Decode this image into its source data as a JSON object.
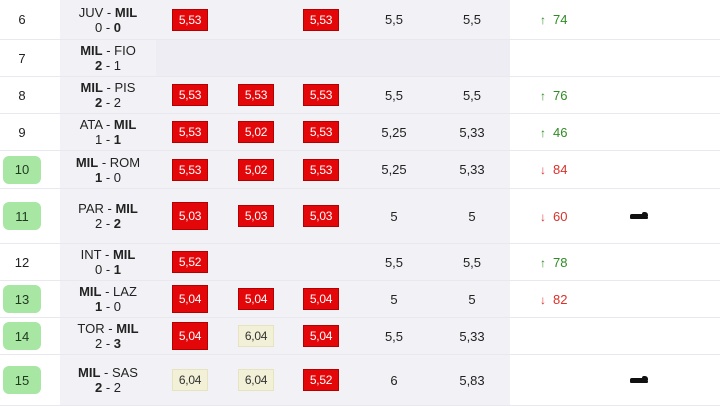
{
  "rows": [
    {
      "round": "6",
      "highlight": false,
      "home": "JUV",
      "away": "MIL",
      "home_bold": false,
      "away_bold": true,
      "sh": "0",
      "sa": "0",
      "sh_bold": false,
      "sa_bold": true,
      "b1": {
        "v": "5,53",
        "s": "red"
      },
      "b2": null,
      "b3": {
        "v": "5,53",
        "s": "red"
      },
      "a1": "5,5",
      "a2": "5,5",
      "trend": {
        "dir": "up",
        "value": "74"
      },
      "icon": false
    },
    {
      "round": "7",
      "highlight": false,
      "home": "MIL",
      "away": "FIO",
      "home_bold": true,
      "away_bold": false,
      "sh": "2",
      "sa": "1",
      "sh_bold": true,
      "sa_bold": false,
      "b1": null,
      "b2": null,
      "b3": null,
      "a1": "",
      "a2": "",
      "trend": null,
      "icon": false,
      "empty": true
    },
    {
      "round": "8",
      "highlight": false,
      "home": "MIL",
      "away": "PIS",
      "home_bold": true,
      "away_bold": false,
      "sh": "2",
      "sa": "2",
      "sh_bold": true,
      "sa_bold": false,
      "b1": {
        "v": "5,53",
        "s": "red"
      },
      "b2": {
        "v": "5,53",
        "s": "red"
      },
      "b3": {
        "v": "5,53",
        "s": "red"
      },
      "a1": "5,5",
      "a2": "5,5",
      "trend": {
        "dir": "up",
        "value": "76"
      },
      "icon": false
    },
    {
      "round": "9",
      "highlight": false,
      "home": "ATA",
      "away": "MIL",
      "home_bold": false,
      "away_bold": true,
      "sh": "1",
      "sa": "1",
      "sh_bold": false,
      "sa_bold": true,
      "b1": {
        "v": "5,53",
        "s": "red"
      },
      "b2": {
        "v": "5,02",
        "s": "red"
      },
      "b3": {
        "v": "5,53",
        "s": "red"
      },
      "a1": "5,25",
      "a2": "5,33",
      "trend": {
        "dir": "up",
        "value": "46"
      },
      "icon": false
    },
    {
      "round": "10",
      "highlight": true,
      "home": "MIL",
      "away": "ROM",
      "home_bold": true,
      "away_bold": false,
      "sh": "1",
      "sa": "0",
      "sh_bold": true,
      "sa_bold": false,
      "b1": {
        "v": "5,53",
        "s": "red"
      },
      "b2": {
        "v": "5,02",
        "s": "red"
      },
      "b3": {
        "v": "5,53",
        "s": "red"
      },
      "a1": "5,25",
      "a2": "5,33",
      "trend": {
        "dir": "down",
        "value": "84"
      },
      "icon": false
    },
    {
      "round": "11",
      "highlight": true,
      "home": "PAR",
      "away": "MIL",
      "home_bold": false,
      "away_bold": true,
      "sh": "2",
      "sa": "2",
      "sh_bold": false,
      "sa_bold": true,
      "b1": {
        "v": "5,03",
        "s": "red",
        "tall": true
      },
      "b2": {
        "v": "5,03",
        "s": "red"
      },
      "b3": {
        "v": "5,03",
        "s": "red"
      },
      "a1": "5",
      "a2": "5",
      "trend": {
        "dir": "down",
        "value": "60"
      },
      "icon": true
    },
    {
      "round": "12",
      "highlight": false,
      "home": "INT",
      "away": "MIL",
      "home_bold": false,
      "away_bold": true,
      "sh": "0",
      "sa": "1",
      "sh_bold": false,
      "sa_bold": true,
      "b1": {
        "v": "5,52",
        "s": "red"
      },
      "b2": null,
      "b3": null,
      "a1": "5,5",
      "a2": "5,5",
      "trend": {
        "dir": "up",
        "value": "78"
      },
      "icon": false
    },
    {
      "round": "13",
      "highlight": true,
      "home": "MIL",
      "away": "LAZ",
      "home_bold": true,
      "away_bold": false,
      "sh": "1",
      "sa": "0",
      "sh_bold": true,
      "sa_bold": false,
      "b1": {
        "v": "5,04",
        "s": "red",
        "tall": true
      },
      "b2": {
        "v": "5,04",
        "s": "red"
      },
      "b3": {
        "v": "5,04",
        "s": "red"
      },
      "a1": "5",
      "a2": "5",
      "trend": {
        "dir": "down",
        "value": "82"
      },
      "icon": false
    },
    {
      "round": "14",
      "highlight": true,
      "home": "TOR",
      "away": "MIL",
      "home_bold": false,
      "away_bold": true,
      "sh": "2",
      "sa": "3",
      "sh_bold": false,
      "sa_bold": true,
      "b1": {
        "v": "5,04",
        "s": "red",
        "tall": true
      },
      "b2": {
        "v": "6,04",
        "s": "pale"
      },
      "b3": {
        "v": "5,04",
        "s": "red"
      },
      "a1": "5,5",
      "a2": "5,33",
      "trend": null,
      "icon": false
    },
    {
      "round": "15",
      "highlight": true,
      "home": "MIL",
      "away": "SAS",
      "home_bold": true,
      "away_bold": false,
      "sh": "2",
      "sa": "2",
      "sh_bold": true,
      "sa_bold": false,
      "b1": {
        "v": "6,04",
        "s": "pale"
      },
      "b2": {
        "v": "6,04",
        "s": "pale"
      },
      "b3": {
        "v": "5,52",
        "s": "red"
      },
      "a1": "6",
      "a2": "5,83",
      "trend": null,
      "icon": true
    }
  ]
}
